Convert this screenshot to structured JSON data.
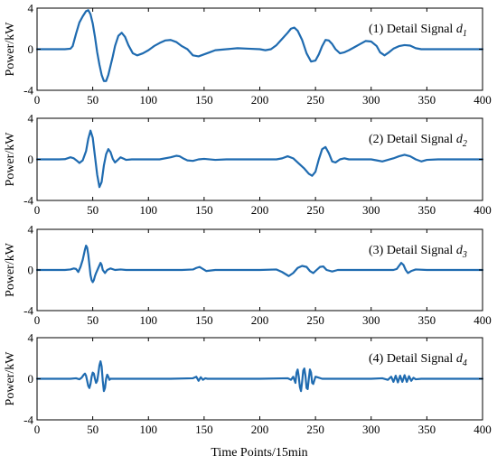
{
  "figure": {
    "xlabel": "Time Points/15min",
    "ylabel": "Power/kW",
    "colors": {
      "line": "#1f6bb0",
      "axes": "#000000",
      "background": "#ffffff"
    }
  },
  "chart_data": [
    {
      "type": "line",
      "title": "(1) Detail Signal d1",
      "title_parts": {
        "prefix": "(1) Detail Signal ",
        "var": "d",
        "sub": "1"
      },
      "ylabel": "Power/kW",
      "xlabel": "",
      "xlim": [
        0,
        400
      ],
      "ylim": [
        -4,
        4
      ],
      "xticks": [
        0,
        50,
        100,
        150,
        200,
        250,
        300,
        350,
        400
      ],
      "yticks": [
        -4,
        0,
        4
      ],
      "grid": false,
      "series": [
        {
          "x": [
            0,
            25,
            30,
            32,
            35,
            38,
            41,
            44,
            46,
            48,
            50,
            52,
            54,
            56,
            58,
            60,
            62,
            64,
            66,
            68,
            70,
            73,
            76,
            79,
            82,
            86,
            90,
            95,
            100,
            105,
            110,
            115,
            120,
            125,
            130,
            135,
            140,
            145,
            150,
            155,
            160,
            170,
            180,
            190,
            200,
            205,
            210,
            215,
            220,
            225,
            228,
            231,
            234,
            238,
            242,
            246,
            250,
            253,
            256,
            259,
            262,
            265,
            268,
            272,
            276,
            280,
            285,
            290,
            295,
            300,
            305,
            308,
            312,
            316,
            320,
            325,
            330,
            335,
            340,
            345,
            350,
            360,
            370,
            380,
            400
          ],
          "values": [
            0,
            0,
            0.05,
            0.3,
            1.5,
            2.6,
            3.2,
            3.7,
            3.8,
            3.4,
            2.5,
            1.2,
            -0.3,
            -1.5,
            -2.5,
            -3.1,
            -3.1,
            -2.5,
            -1.6,
            -0.7,
            0.3,
            1.3,
            1.6,
            1.2,
            0.4,
            -0.4,
            -0.6,
            -0.4,
            -0.1,
            0.3,
            0.6,
            0.85,
            0.9,
            0.7,
            0.3,
            0.0,
            -0.6,
            -0.7,
            -0.5,
            -0.3,
            -0.1,
            0.0,
            0.1,
            0.05,
            0.0,
            -0.1,
            0.0,
            0.4,
            1.0,
            1.6,
            2.0,
            2.1,
            1.8,
            0.9,
            -0.4,
            -1.2,
            -1.1,
            -0.5,
            0.3,
            0.9,
            0.85,
            0.5,
            0.0,
            -0.4,
            -0.3,
            -0.1,
            0.2,
            0.5,
            0.8,
            0.75,
            0.3,
            -0.3,
            -0.6,
            -0.3,
            0.05,
            0.3,
            0.4,
            0.35,
            0.1,
            0.0,
            0.0,
            0.0,
            0.0,
            0.0,
            0.0
          ]
        }
      ]
    },
    {
      "type": "line",
      "title": "(2) Detail Signal d2",
      "title_parts": {
        "prefix": "(2) Detail Signal ",
        "var": "d",
        "sub": "2"
      },
      "ylabel": "Power/kW",
      "xlabel": "",
      "xlim": [
        0,
        400
      ],
      "ylim": [
        -4,
        4
      ],
      "xticks": [
        0,
        50,
        100,
        150,
        200,
        250,
        300,
        350,
        400
      ],
      "yticks": [
        -4,
        0,
        4
      ],
      "grid": false,
      "series": [
        {
          "x": [
            0,
            20,
            25,
            30,
            33,
            36,
            38,
            41,
            44,
            46,
            48,
            50,
            52,
            54,
            56,
            58,
            60,
            62,
            64,
            66,
            68,
            70,
            72,
            75,
            78,
            80,
            85,
            95,
            110,
            120,
            125,
            128,
            132,
            135,
            140,
            145,
            150,
            160,
            170,
            180,
            200,
            215,
            220,
            225,
            230,
            235,
            240,
            244,
            247,
            250,
            253,
            256,
            259,
            262,
            265,
            268,
            272,
            276,
            280,
            290,
            300,
            305,
            310,
            315,
            320,
            325,
            330,
            335,
            340,
            345,
            350,
            360,
            380,
            400
          ],
          "values": [
            0,
            0,
            0.02,
            0.2,
            0.1,
            -0.15,
            -0.35,
            -0.1,
            0.8,
            2.0,
            2.8,
            2.1,
            0.3,
            -1.5,
            -2.7,
            -2.2,
            -0.6,
            0.5,
            1.0,
            0.7,
            0.05,
            -0.3,
            -0.1,
            0.2,
            0.05,
            -0.05,
            0.0,
            0.0,
            0.0,
            0.2,
            0.35,
            0.3,
            0.05,
            -0.1,
            -0.15,
            0.0,
            0.05,
            -0.05,
            0.0,
            0.0,
            0.0,
            0.0,
            0.1,
            0.3,
            0.1,
            -0.4,
            -0.9,
            -1.4,
            -1.6,
            -1.2,
            0.0,
            1.0,
            1.2,
            0.6,
            -0.2,
            -0.3,
            0.0,
            0.1,
            0.0,
            0.0,
            0.0,
            -0.1,
            -0.2,
            -0.05,
            0.1,
            0.3,
            0.45,
            0.3,
            0.0,
            -0.2,
            -0.05,
            0.0,
            0.0,
            0.0
          ]
        }
      ]
    },
    {
      "type": "line",
      "title": "(3) Detail Signal d3",
      "title_parts": {
        "prefix": "(3) Detail Signal ",
        "var": "d",
        "sub": "3"
      },
      "ylabel": "Power/kW",
      "xlabel": "",
      "xlim": [
        0,
        400
      ],
      "ylim": [
        -4,
        4
      ],
      "xticks": [
        0,
        50,
        100,
        150,
        200,
        250,
        300,
        350,
        400
      ],
      "yticks": [
        -4,
        0,
        4
      ],
      "grid": false,
      "series": [
        {
          "x": [
            0,
            25,
            30,
            33,
            35,
            37,
            39,
            41,
            43,
            44,
            45,
            46,
            47,
            48,
            49,
            50,
            51,
            52,
            53,
            55,
            57,
            58,
            59,
            61,
            63,
            66,
            70,
            75,
            80,
            90,
            100,
            110,
            120,
            130,
            140,
            143,
            146,
            149,
            152,
            160,
            180,
            200,
            215,
            220,
            223,
            226,
            230,
            234,
            238,
            242,
            245,
            248,
            251,
            254,
            257,
            260,
            265,
            270,
            280,
            300,
            320,
            323,
            325,
            327,
            329,
            331,
            333,
            336,
            340,
            350,
            360,
            380,
            400
          ],
          "values": [
            0,
            0,
            0.05,
            0.15,
            0.1,
            -0.2,
            0.3,
            1.0,
            2.0,
            2.4,
            2.2,
            1.5,
            0.5,
            -0.5,
            -1.0,
            -1.2,
            -1.0,
            -0.6,
            -0.3,
            0.2,
            0.7,
            0.5,
            0.0,
            -0.3,
            0.0,
            0.15,
            0.0,
            0.05,
            0.0,
            0.0,
            0.0,
            0.0,
            0.0,
            0.0,
            0.05,
            0.2,
            0.3,
            0.1,
            -0.1,
            0.0,
            0.0,
            0.0,
            0.05,
            -0.2,
            -0.4,
            -0.6,
            -0.3,
            0.2,
            0.4,
            0.3,
            -0.1,
            -0.3,
            0.0,
            0.3,
            0.35,
            0.0,
            -0.15,
            0.0,
            0.0,
            0.0,
            0.0,
            0.1,
            0.4,
            0.7,
            0.5,
            0.0,
            -0.3,
            -0.1,
            0.05,
            0.0,
            0.0,
            0.0,
            0.0
          ]
        }
      ]
    },
    {
      "type": "line",
      "title": "(4) Detail Signal d4",
      "title_parts": {
        "prefix": "(4) Detail Signal ",
        "var": "d",
        "sub": "4"
      },
      "ylabel": "Power/kW",
      "xlabel": "Time Points/15min",
      "xlim": [
        0,
        400
      ],
      "ylim": [
        -4,
        4
      ],
      "xticks": [
        0,
        50,
        100,
        150,
        200,
        250,
        300,
        350,
        400
      ],
      "yticks": [
        -4,
        0,
        4
      ],
      "grid": false,
      "series": [
        {
          "x": [
            0,
            30,
            35,
            38,
            40,
            42,
            43,
            44,
            45,
            46,
            47,
            48,
            49,
            50,
            51,
            52,
            53,
            54,
            55,
            56,
            57,
            58,
            59,
            60,
            61,
            62,
            63,
            64,
            65,
            66,
            70,
            80,
            100,
            120,
            140,
            143,
            145,
            147,
            149,
            151,
            153,
            155,
            160,
            180,
            200,
            225,
            228,
            230,
            232,
            233,
            234,
            235,
            236,
            237,
            238,
            239,
            240,
            241,
            242,
            243,
            244,
            245,
            246,
            247,
            248,
            250,
            253,
            256,
            260,
            280,
            300,
            310,
            315,
            318,
            320,
            322,
            324,
            326,
            328,
            330,
            332,
            334,
            336,
            338,
            340,
            345,
            360,
            400
          ],
          "values": [
            0,
            0,
            0.05,
            -0.05,
            0.1,
            0.4,
            0.5,
            0.3,
            -0.2,
            -0.7,
            -0.9,
            -0.5,
            0.2,
            0.6,
            0.5,
            0.0,
            -0.4,
            -0.2,
            0.5,
            1.3,
            1.7,
            1.2,
            -0.2,
            -1.2,
            -0.9,
            0.0,
            0.4,
            0.2,
            -0.1,
            0.0,
            0.0,
            0.0,
            0.0,
            0.0,
            0.05,
            0.2,
            -0.2,
            0.15,
            -0.1,
            0.05,
            0.0,
            0.0,
            0.0,
            0.0,
            0.0,
            0.05,
            -0.1,
            0.2,
            -0.4,
            0.6,
            0.9,
            0.2,
            -0.8,
            -1.2,
            -0.3,
            0.8,
            1.0,
            0.3,
            -0.9,
            -1.0,
            0.0,
            0.9,
            0.6,
            -0.4,
            -0.5,
            0.2,
            0.1,
            0.0,
            0.0,
            0.0,
            0.0,
            0.05,
            -0.1,
            0.2,
            -0.3,
            0.3,
            -0.35,
            0.3,
            -0.3,
            0.35,
            -0.3,
            0.25,
            -0.2,
            0.1,
            -0.05,
            0.0,
            0.0,
            0.0
          ]
        }
      ]
    }
  ]
}
